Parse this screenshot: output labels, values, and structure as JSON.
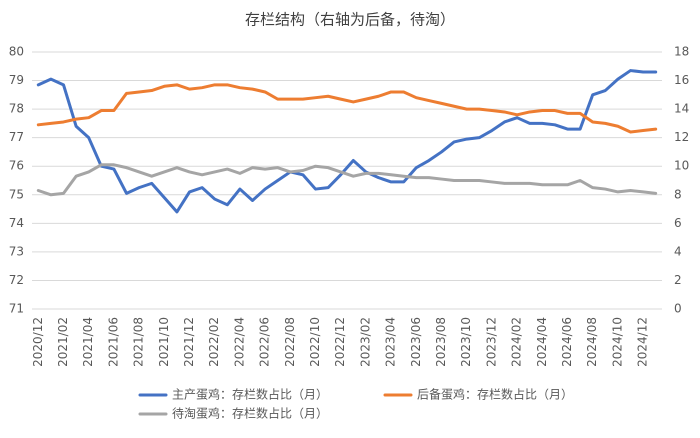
{
  "chart_data": {
    "type": "line",
    "title": "存栏结构（右轴为后备，待淘）",
    "categories": [
      "2020/12",
      null,
      "2021/02",
      null,
      "2021/04",
      null,
      "2021/06",
      null,
      "2021/08",
      null,
      "2021/10",
      null,
      "2021/12",
      null,
      "2022/02",
      null,
      "2022/04",
      null,
      "2022/06",
      null,
      "2022/08",
      null,
      "2022/10",
      null,
      "2022/12",
      null,
      "2023/02",
      null,
      "2023/04",
      null,
      "2023/06",
      null,
      "2023/08",
      null,
      "2023/10",
      null,
      "2023/12",
      null,
      "2024/02",
      null,
      "2024/04",
      null,
      "2024/06",
      null,
      "2024/08",
      null,
      "2024/10",
      null,
      "2024/12",
      null
    ],
    "series": [
      {
        "name": "主产蛋鸡：存栏数占比（月）",
        "color": "#4472c4",
        "values": [
          78.85,
          79.05,
          78.85,
          77.4,
          77.0,
          76.0,
          75.9,
          75.05,
          75.25,
          75.4,
          74.9,
          74.4,
          75.1,
          75.25,
          74.85,
          74.65,
          75.2,
          74.8,
          75.2,
          75.5,
          75.8,
          75.7,
          75.2,
          75.25,
          75.7,
          76.2,
          75.8,
          75.6,
          75.45,
          75.45,
          75.95,
          76.2,
          76.5,
          76.85,
          76.95,
          77.0,
          77.25,
          77.55,
          77.7,
          77.5,
          77.5,
          77.45,
          77.3,
          77.3,
          78.5,
          78.65,
          79.05,
          79.35,
          79.3,
          79.3
        ]
      },
      {
        "name": "后备蛋鸡：存栏数占比（月）",
        "color": "#ed7d31",
        "axis": "y2",
        "values": [
          12.9,
          13.0,
          13.1,
          13.3,
          13.4,
          13.9,
          13.9,
          15.1,
          15.2,
          15.3,
          15.6,
          15.7,
          15.4,
          15.5,
          15.7,
          15.7,
          15.5,
          15.4,
          15.2,
          14.7,
          14.7,
          14.7,
          14.8,
          14.9,
          14.7,
          14.5,
          14.7,
          14.9,
          15.2,
          15.2,
          14.8,
          14.6,
          14.4,
          14.2,
          14.0,
          14.0,
          13.9,
          13.8,
          13.6,
          13.8,
          13.9,
          13.9,
          13.7,
          13.7,
          13.1,
          13.0,
          12.8,
          12.4,
          12.5,
          12.6
        ]
      },
      {
        "name": "待淘蛋鸡：存栏数占比（月）",
        "color": "#a5a5a5",
        "axis": "y2",
        "values": [
          8.3,
          8.0,
          8.1,
          9.3,
          9.6,
          10.1,
          10.1,
          9.9,
          9.6,
          9.3,
          9.6,
          9.9,
          9.6,
          9.4,
          9.6,
          9.8,
          9.5,
          9.9,
          9.8,
          9.9,
          9.6,
          9.7,
          10.0,
          9.9,
          9.6,
          9.3,
          9.5,
          9.5,
          9.4,
          9.3,
          9.2,
          9.2,
          9.1,
          9.0,
          9.0,
          9.0,
          8.9,
          8.8,
          8.8,
          8.8,
          8.7,
          8.7,
          8.7,
          9.0,
          8.5,
          8.4,
          8.2,
          8.3,
          8.2,
          8.1
        ]
      }
    ],
    "ylim": [
      71,
      80
    ],
    "yticks": [
      71,
      72,
      73,
      74,
      75,
      76,
      77,
      78,
      79,
      80
    ],
    "y2lim": [
      0,
      18
    ],
    "y2ticks": [
      0,
      2,
      4,
      6,
      8,
      10,
      12,
      14,
      16,
      18
    ],
    "grid": true,
    "legend": "bottom"
  }
}
